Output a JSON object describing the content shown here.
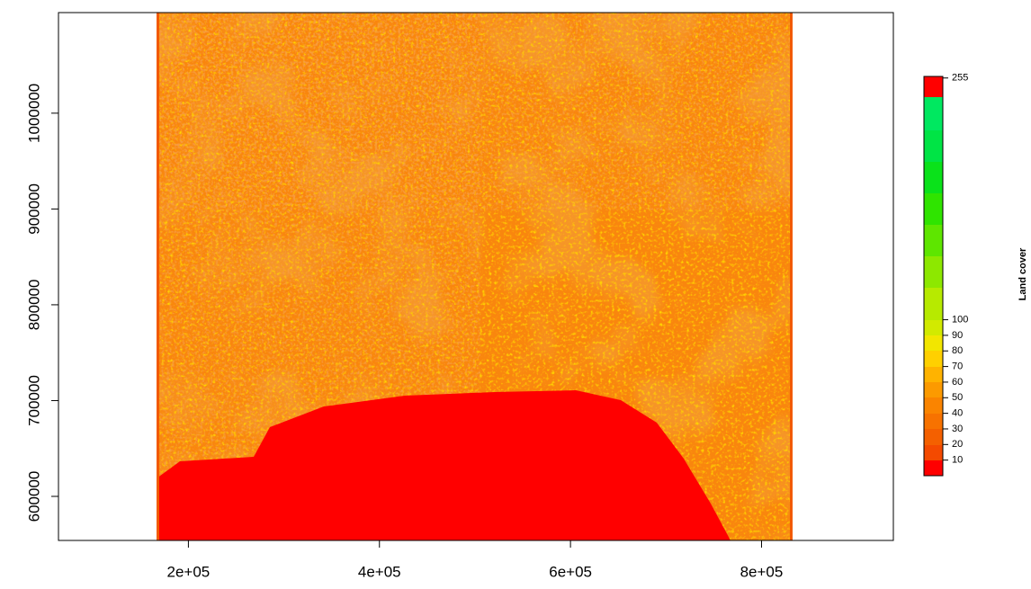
{
  "chart_data": {
    "type": "raster",
    "xlim": [
      64000,
      938000
    ],
    "ylim": [
      554000,
      1105000
    ],
    "xticks": [
      {
        "value": 200000,
        "label": "2e+05"
      },
      {
        "value": 400000,
        "label": "4e+05"
      },
      {
        "value": 600000,
        "label": "6e+05"
      },
      {
        "value": 800000,
        "label": "8e+05"
      }
    ],
    "yticks": [
      600000,
      700000,
      800000,
      900000,
      1000000
    ],
    "legend": {
      "title": "Land cover",
      "lim": [
        0,
        256
      ],
      "ticks": [
        10,
        20,
        30,
        40,
        50,
        60,
        70,
        80,
        90,
        100,
        255
      ]
    }
  }
}
